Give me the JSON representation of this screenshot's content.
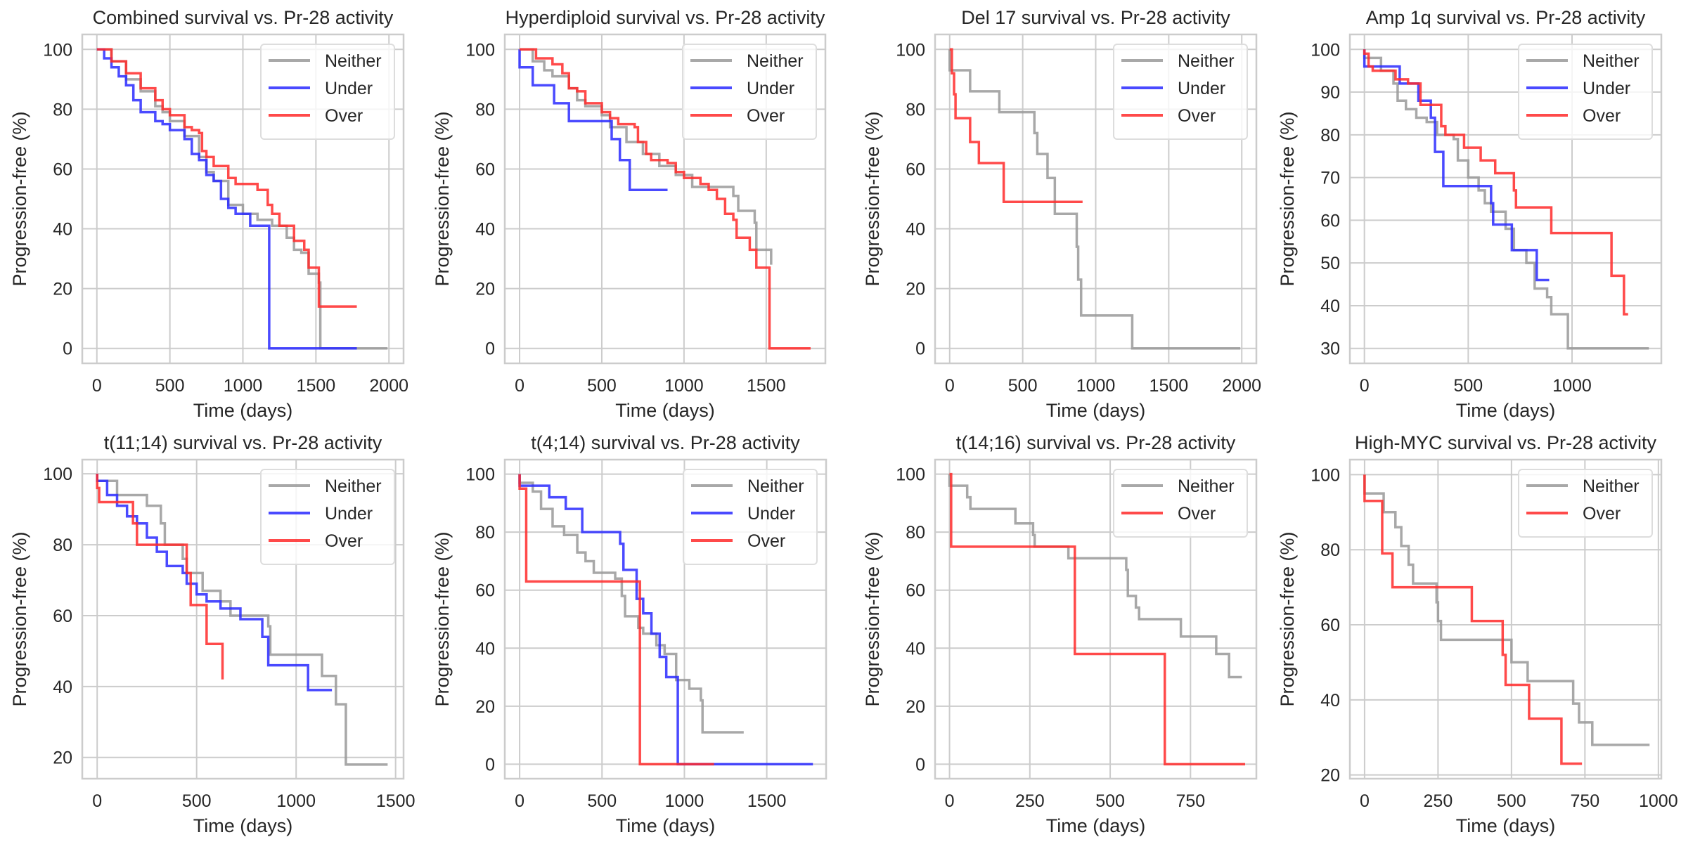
{
  "colors": {
    "Neither": "#999999",
    "Under": "#2a2aff",
    "Over": "#ff2a2a",
    "grid": "#cccccc",
    "frame": "#cccccc"
  },
  "chart_data": [
    {
      "type": "line",
      "title": "Combined survival vs. Pr-28 activity",
      "xlabel": "Time (days)",
      "ylabel": "Progression-free (%)",
      "xlim": [
        -100,
        2100
      ],
      "ylim": [
        -5,
        105
      ],
      "xticks": [
        0,
        500,
        1000,
        1500,
        2000
      ],
      "yticks": [
        0,
        20,
        40,
        60,
        80,
        100
      ],
      "grid": true,
      "legend": "top-right",
      "legend_entries": [
        "Neither",
        "Under",
        "Over"
      ],
      "series": [
        {
          "name": "Neither",
          "x": [
            0,
            100,
            200,
            300,
            400,
            450,
            500,
            600,
            700,
            750,
            800,
            900,
            1000,
            1100,
            1200,
            1300,
            1350,
            1400,
            1450,
            1520,
            1530,
            1990
          ],
          "y": [
            100,
            96,
            90,
            86,
            81,
            79,
            76,
            71,
            64,
            59,
            56,
            48,
            45,
            43,
            41,
            37,
            33,
            32,
            25,
            22,
            0,
            0
          ]
        },
        {
          "name": "Under",
          "x": [
            0,
            50,
            100,
            150,
            200,
            250,
            300,
            400,
            450,
            500,
            600,
            650,
            700,
            750,
            800,
            850,
            900,
            950,
            1050,
            1170,
            1180,
            1780
          ],
          "y": [
            100,
            97,
            94,
            91,
            88,
            83,
            79,
            76,
            75,
            73,
            70,
            65,
            63,
            58,
            56,
            50,
            47,
            45,
            41,
            41,
            0,
            0
          ]
        },
        {
          "name": "Over",
          "x": [
            0,
            100,
            200,
            300,
            400,
            450,
            500,
            600,
            650,
            700,
            720,
            750,
            800,
            900,
            950,
            1100,
            1170,
            1200,
            1250,
            1300,
            1350,
            1420,
            1450,
            1510,
            1520,
            1780
          ],
          "y": [
            100,
            96,
            92,
            87,
            83,
            80,
            78,
            74,
            73,
            72,
            66,
            64,
            61,
            57,
            55,
            53,
            48,
            45,
            41,
            41,
            36,
            33,
            27,
            27,
            14,
            14
          ]
        }
      ]
    },
    {
      "type": "line",
      "title": "Hyperdiploid survival vs. Pr-28 activity",
      "xlabel": "Time (days)",
      "ylabel": "Progression-free (%)",
      "xlim": [
        -90,
        1860
      ],
      "ylim": [
        -5,
        105
      ],
      "xticks": [
        0,
        500,
        1000,
        1500
      ],
      "yticks": [
        0,
        20,
        40,
        60,
        80,
        100
      ],
      "grid": true,
      "legend": "top-right",
      "legend_entries": [
        "Neither",
        "Under",
        "Over"
      ],
      "series": [
        {
          "name": "Neither",
          "x": [
            0,
            80,
            150,
            200,
            300,
            350,
            400,
            500,
            550,
            650,
            750,
            850,
            950,
            1050,
            1240,
            1300,
            1330,
            1430,
            1440,
            1520,
            1530
          ],
          "y": [
            100,
            96,
            93,
            91,
            87,
            83,
            81,
            78,
            74,
            69,
            65,
            61,
            58,
            54,
            54,
            51,
            46,
            42,
            33,
            33,
            28
          ]
        },
        {
          "name": "Under",
          "x": [
            0,
            80,
            210,
            300,
            560,
            610,
            670,
            900
          ],
          "y": [
            94,
            88,
            82,
            76,
            70,
            63,
            53,
            53
          ]
        },
        {
          "name": "Over",
          "x": [
            0,
            100,
            200,
            260,
            300,
            350,
            400,
            500,
            550,
            600,
            700,
            720,
            770,
            800,
            900,
            950,
            1000,
            1100,
            1150,
            1200,
            1250,
            1300,
            1320,
            1400,
            1440,
            1510,
            1520,
            1770
          ],
          "y": [
            100,
            97,
            95,
            92,
            87,
            86,
            82,
            79,
            77,
            75,
            74,
            69,
            65,
            63,
            62,
            59,
            57,
            55,
            53,
            50,
            45,
            43,
            37,
            33,
            27,
            27,
            0,
            0
          ]
        }
      ]
    },
    {
      "type": "line",
      "title": "Del 17 survival vs. Pr-28 activity",
      "xlabel": "Time (days)",
      "ylabel": "Progression-free (%)",
      "xlim": [
        -100,
        2100
      ],
      "ylim": [
        -5,
        105
      ],
      "xticks": [
        0,
        500,
        1000,
        1500,
        2000
      ],
      "yticks": [
        0,
        20,
        40,
        60,
        80,
        100
      ],
      "grid": true,
      "legend": "top-right",
      "legend_entries": [
        "Neither",
        "Under",
        "Over"
      ],
      "series": [
        {
          "name": "Neither",
          "x": [
            0,
            140,
            340,
            580,
            600,
            670,
            720,
            870,
            880,
            900,
            1250,
            1990
          ],
          "y": [
            93,
            86,
            79,
            72,
            65,
            57,
            45,
            34,
            23,
            11,
            0,
            0
          ]
        },
        {
          "name": "Under",
          "x": [],
          "y": []
        },
        {
          "name": "Over",
          "x": [
            0,
            15,
            30,
            40,
            140,
            200,
            370,
            910
          ],
          "y": [
            100,
            92,
            85,
            77,
            69,
            62,
            49,
            49
          ]
        }
      ]
    },
    {
      "type": "line",
      "title": "Amp 1q survival vs. Pr-28 activity",
      "xlabel": "Time (days)",
      "ylabel": "Progression-free (%)",
      "xlim": [
        -70,
        1430
      ],
      "ylim": [
        26.5,
        103.5
      ],
      "xticks": [
        0,
        500,
        1000
      ],
      "yticks": [
        30,
        40,
        50,
        60,
        70,
        80,
        90,
        100
      ],
      "grid": true,
      "legend": "top-right",
      "legend_entries": [
        "Neither",
        "Under",
        "Over"
      ],
      "series": [
        {
          "name": "Neither",
          "x": [
            0,
            80,
            140,
            160,
            200,
            250,
            300,
            350,
            430,
            450,
            500,
            550,
            580,
            610,
            680,
            720,
            780,
            820,
            880,
            900,
            980,
            1370
          ],
          "y": [
            98,
            95,
            92,
            88,
            86,
            84,
            83,
            80,
            79,
            74,
            70,
            67,
            64,
            62,
            58,
            53,
            50,
            44,
            42,
            38,
            30,
            30
          ]
        },
        {
          "name": "Under",
          "x": [
            0,
            170,
            260,
            320,
            340,
            380,
            610,
            620,
            710,
            830,
            890
          ],
          "y": [
            96,
            92,
            88,
            84,
            76,
            68,
            64,
            59,
            53,
            46,
            46
          ]
        },
        {
          "name": "Over",
          "x": [
            0,
            20,
            40,
            150,
            210,
            270,
            370,
            390,
            480,
            560,
            630,
            720,
            730,
            900,
            1190,
            1250,
            1270
          ],
          "y": [
            99,
            96,
            95,
            93,
            92,
            87,
            82,
            80,
            77,
            74,
            71,
            67,
            63,
            57,
            47,
            38,
            38
          ]
        }
      ]
    },
    {
      "type": "line",
      "title": "t(11;14) survival vs. Pr-28 activity",
      "xlabel": "Time (days)",
      "ylabel": "Progression-free (%)",
      "xlim": [
        -75,
        1540
      ],
      "ylim": [
        14,
        104
      ],
      "xticks": [
        0,
        500,
        1000,
        1500
      ],
      "yticks": [
        20,
        40,
        60,
        80,
        100
      ],
      "grid": true,
      "legend": "top-right",
      "legend_entries": [
        "Neither",
        "Under",
        "Over"
      ],
      "series": [
        {
          "name": "Neither",
          "x": [
            0,
            100,
            250,
            320,
            340,
            430,
            450,
            530,
            620,
            670,
            860,
            870,
            1130,
            1200,
            1250,
            1460
          ],
          "y": [
            98,
            94,
            91,
            86,
            80,
            76,
            72,
            67,
            64,
            60,
            57,
            49,
            43,
            35,
            18,
            18
          ]
        },
        {
          "name": "Under",
          "x": [
            0,
            50,
            100,
            150,
            200,
            250,
            300,
            350,
            430,
            450,
            500,
            550,
            620,
            720,
            830,
            860,
            1060,
            1180
          ],
          "y": [
            98,
            94,
            91,
            88,
            86,
            82,
            78,
            74,
            72,
            69,
            66,
            64,
            62,
            59,
            54,
            46,
            39,
            39
          ]
        },
        {
          "name": "Over",
          "x": [
            0,
            10,
            180,
            200,
            420,
            450,
            470,
            550,
            630
          ],
          "y": [
            96,
            92,
            86,
            80,
            80,
            72,
            63,
            52,
            42
          ]
        }
      ]
    },
    {
      "type": "line",
      "title": "t(4;14) survival vs. Pr-28 activity",
      "xlabel": "Time (days)",
      "ylabel": "Progression-free (%)",
      "xlim": [
        -90,
        1860
      ],
      "ylim": [
        -5,
        105
      ],
      "xticks": [
        0,
        500,
        1000,
        1500
      ],
      "yticks": [
        0,
        20,
        40,
        60,
        80,
        100
      ],
      "grid": true,
      "legend": "top-right",
      "legend_entries": [
        "Neither",
        "Under",
        "Over"
      ],
      "series": [
        {
          "name": "Neither",
          "x": [
            0,
            80,
            130,
            200,
            270,
            350,
            400,
            450,
            580,
            620,
            640,
            720,
            750,
            830,
            880,
            950,
            1030,
            1100,
            1110,
            1360
          ],
          "y": [
            97,
            94,
            88,
            82,
            79,
            73,
            70,
            66,
            64,
            58,
            51,
            47,
            45,
            41,
            38,
            29,
            26,
            22,
            11,
            11
          ]
        },
        {
          "name": "Under",
          "x": [
            0,
            180,
            280,
            380,
            610,
            630,
            710,
            750,
            800,
            850,
            890,
            950,
            960,
            1780
          ],
          "y": [
            96,
            92,
            88,
            80,
            76,
            67,
            57,
            52,
            45,
            37,
            30,
            30,
            0,
            0
          ]
        },
        {
          "name": "Over",
          "x": [
            0,
            40,
            720,
            730,
            1180
          ],
          "y": [
            95,
            63,
            63,
            0,
            0
          ]
        }
      ]
    },
    {
      "type": "line",
      "title": "t(14;16) survival vs. Pr-28 activity",
      "xlabel": "Time (days)",
      "ylabel": "Progression-free (%)",
      "xlim": [
        -45,
        955
      ],
      "ylim": [
        -5,
        105
      ],
      "xticks": [
        0,
        250,
        500,
        750
      ],
      "yticks": [
        0,
        20,
        40,
        60,
        80,
        100
      ],
      "grid": true,
      "legend": "top-right",
      "legend_entries": [
        "Neither",
        "Over"
      ],
      "series": [
        {
          "name": "Neither",
          "x": [
            0,
            55,
            65,
            205,
            260,
            265,
            370,
            550,
            555,
            580,
            590,
            720,
            830,
            870,
            910
          ],
          "y": [
            96,
            92,
            88,
            83,
            79,
            75,
            71,
            67,
            58,
            54,
            50,
            44,
            38,
            30,
            30
          ]
        },
        {
          "name": "Over",
          "x": [
            0,
            5,
            390,
            670,
            920
          ],
          "y": [
            100,
            75,
            38,
            0,
            0
          ]
        }
      ]
    },
    {
      "type": "line",
      "title": "High-MYC survival vs. Pr-28 activity",
      "xlabel": "Time (days)",
      "ylabel": "Progression-free (%)",
      "xlim": [
        -50,
        1010
      ],
      "ylim": [
        19,
        104
      ],
      "xticks": [
        0,
        250,
        500,
        750,
        1000
      ],
      "yticks": [
        20,
        40,
        60,
        80,
        100
      ],
      "grid": true,
      "legend": "top-right",
      "legend_entries": [
        "Neither",
        "Over"
      ],
      "series": [
        {
          "name": "Neither",
          "x": [
            0,
            65,
            105,
            125,
            150,
            165,
            245,
            250,
            260,
            500,
            555,
            710,
            730,
            775,
            970
          ],
          "y": [
            95,
            90,
            86,
            81,
            76,
            71,
            66,
            61,
            56,
            50,
            45,
            39,
            34,
            28,
            28
          ]
        },
        {
          "name": "Over",
          "x": [
            0,
            60,
            95,
            365,
            470,
            480,
            560,
            670,
            740
          ],
          "y": [
            93,
            79,
            70,
            61,
            52,
            44,
            35,
            23,
            23
          ]
        }
      ]
    }
  ]
}
